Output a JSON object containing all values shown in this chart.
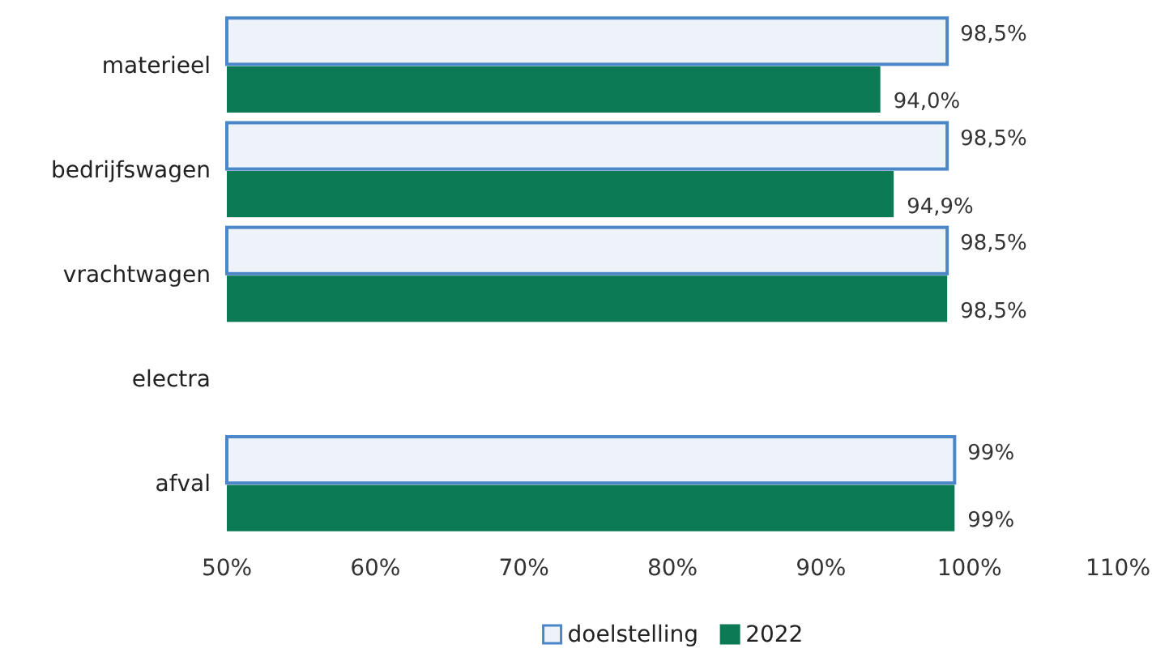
{
  "chart_data": {
    "type": "bar",
    "orientation": "horizontal",
    "categories": [
      "materieel",
      "bedrijfswagen",
      "vrachtwagen",
      "electra",
      "afval"
    ],
    "series": [
      {
        "name": "doelstelling",
        "color": "#eef3f9",
        "values": [
          98.5,
          98.5,
          98.5,
          null,
          99
        ],
        "value_labels": [
          "98,5%",
          "98,5%",
          "98,5%",
          null,
          "99%"
        ]
      },
      {
        "name": "2022",
        "color": "#0b7a55",
        "values": [
          94.0,
          94.9,
          98.5,
          null,
          99
        ],
        "value_labels": [
          "94,0%",
          "94,9%",
          "98,5%",
          null,
          "99%"
        ]
      }
    ],
    "xlim": [
      50,
      110
    ],
    "xticks": [
      {
        "value": 50,
        "label": "50%"
      },
      {
        "value": 60,
        "label": "60%"
      },
      {
        "value": 70,
        "label": "70%"
      },
      {
        "value": 80,
        "label": "80%"
      },
      {
        "value": 90,
        "label": "90%"
      },
      {
        "value": 100,
        "label": "100%"
      },
      {
        "value": 110,
        "label": "110%"
      }
    ],
    "grid": false,
    "legend": "bottom"
  }
}
